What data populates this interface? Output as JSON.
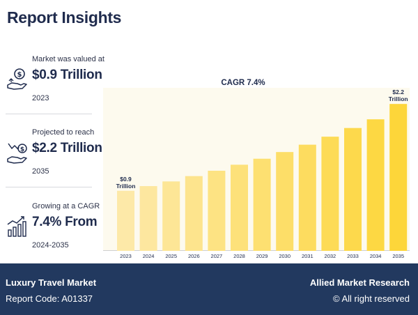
{
  "header": {
    "title": "Report Insights"
  },
  "stats": [
    {
      "label": "Market was valued at",
      "value": "$0.9 Trillion",
      "sub": "2023",
      "icon": "money-hand-icon"
    },
    {
      "label": "Projected to reach",
      "value": "$2.2 Trillion",
      "sub": "2035",
      "icon": "growth-hand-icon"
    },
    {
      "label": "Growing at a CAGR",
      "value": "7.4% From",
      "sub": "2024-2035",
      "icon": "bar-growth-icon"
    }
  ],
  "chart_data": {
    "type": "bar",
    "title": "CAGR 7.4%",
    "categories": [
      "2023",
      "2024",
      "2025",
      "2026",
      "2027",
      "2028",
      "2029",
      "2030",
      "2031",
      "2032",
      "2033",
      "2034",
      "2035"
    ],
    "values": [
      0.9,
      0.97,
      1.04,
      1.12,
      1.2,
      1.29,
      1.38,
      1.48,
      1.59,
      1.71,
      1.84,
      1.97,
      2.2
    ],
    "annotations": [
      {
        "index": 0,
        "line1": "$0.9",
        "line2": "Trillion"
      },
      {
        "index": 12,
        "line1": "$2.2",
        "line2": "Trillion"
      }
    ],
    "ylim": [
      0,
      2.4
    ],
    "colors": {
      "start": "#fde9a8",
      "end": "#fdd63a"
    }
  },
  "footer": {
    "title": "Luxury Travel Market",
    "code": "Report Code: A01337",
    "brand": "Allied Market Research",
    "rights": "© All right reserved"
  }
}
